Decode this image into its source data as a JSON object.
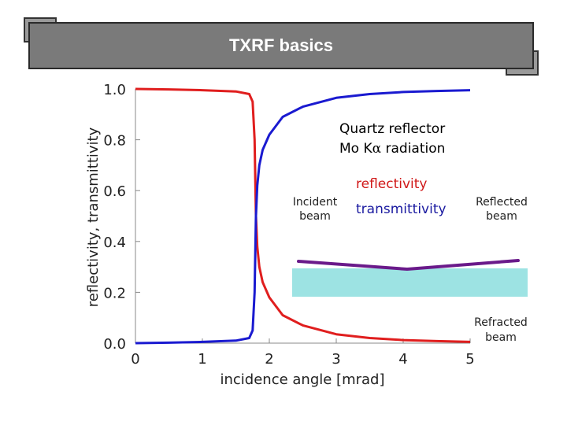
{
  "slide": {
    "title": "TXRF basics"
  },
  "annotations": {
    "sample_line1": "Quartz reflector",
    "sample_line2": "Mo K",
    "alpha_symbol": "α",
    "sample_line2_tail": " radiation",
    "reflectivity_label": "reflectivity",
    "transmittivity_label": "transmittivity",
    "incident_line1": "Incident",
    "incident_line2": "beam",
    "reflected_line1": "Reflected",
    "reflected_line2": "beam",
    "refracted_line1": "Refracted",
    "refracted_line2": "beam"
  },
  "colors": {
    "reflectivity": "#e01e1e",
    "transmittivity": "#1a1ad0",
    "reflectivity_label": "#d01818",
    "transmittivity_label": "#1a1aa0",
    "beam": "#6a1a8a",
    "reflector": "#9de3e3"
  },
  "chart_data": {
    "type": "line",
    "xlabel": "incidence angle [mrad]",
    "ylabel": "reflectivity, transmittivity",
    "xlim": [
      0,
      5
    ],
    "ylim": [
      0,
      1.0
    ],
    "xticks": [
      0,
      1,
      2,
      3,
      4,
      5
    ],
    "xtick_labels": [
      "0",
      "1",
      "2",
      "3",
      "4",
      "5"
    ],
    "yticks": [
      0.0,
      0.2,
      0.4,
      0.6,
      0.8,
      1.0
    ],
    "ytick_labels": [
      "0.0",
      "0.2",
      "0.4",
      "0.6",
      "0.8",
      "1.0"
    ],
    "critical_angle": 1.8,
    "series": [
      {
        "name": "reflectivity",
        "x": [
          0,
          0.5,
          1.0,
          1.5,
          1.7,
          1.75,
          1.78,
          1.8,
          1.82,
          1.85,
          1.9,
          2.0,
          2.2,
          2.5,
          3.0,
          3.5,
          4.0,
          4.5,
          5.0
        ],
        "values": [
          1.0,
          0.998,
          0.995,
          0.99,
          0.98,
          0.95,
          0.8,
          0.5,
          0.38,
          0.3,
          0.24,
          0.18,
          0.11,
          0.07,
          0.035,
          0.02,
          0.012,
          0.008,
          0.005
        ]
      },
      {
        "name": "transmittivity",
        "x": [
          0,
          0.5,
          1.0,
          1.5,
          1.7,
          1.75,
          1.78,
          1.8,
          1.82,
          1.85,
          1.9,
          2.0,
          2.2,
          2.5,
          3.0,
          3.5,
          4.0,
          4.5,
          5.0
        ],
        "values": [
          0.0,
          0.002,
          0.005,
          0.01,
          0.02,
          0.05,
          0.2,
          0.5,
          0.62,
          0.7,
          0.76,
          0.82,
          0.89,
          0.93,
          0.965,
          0.98,
          0.988,
          0.992,
          0.995
        ]
      }
    ]
  }
}
